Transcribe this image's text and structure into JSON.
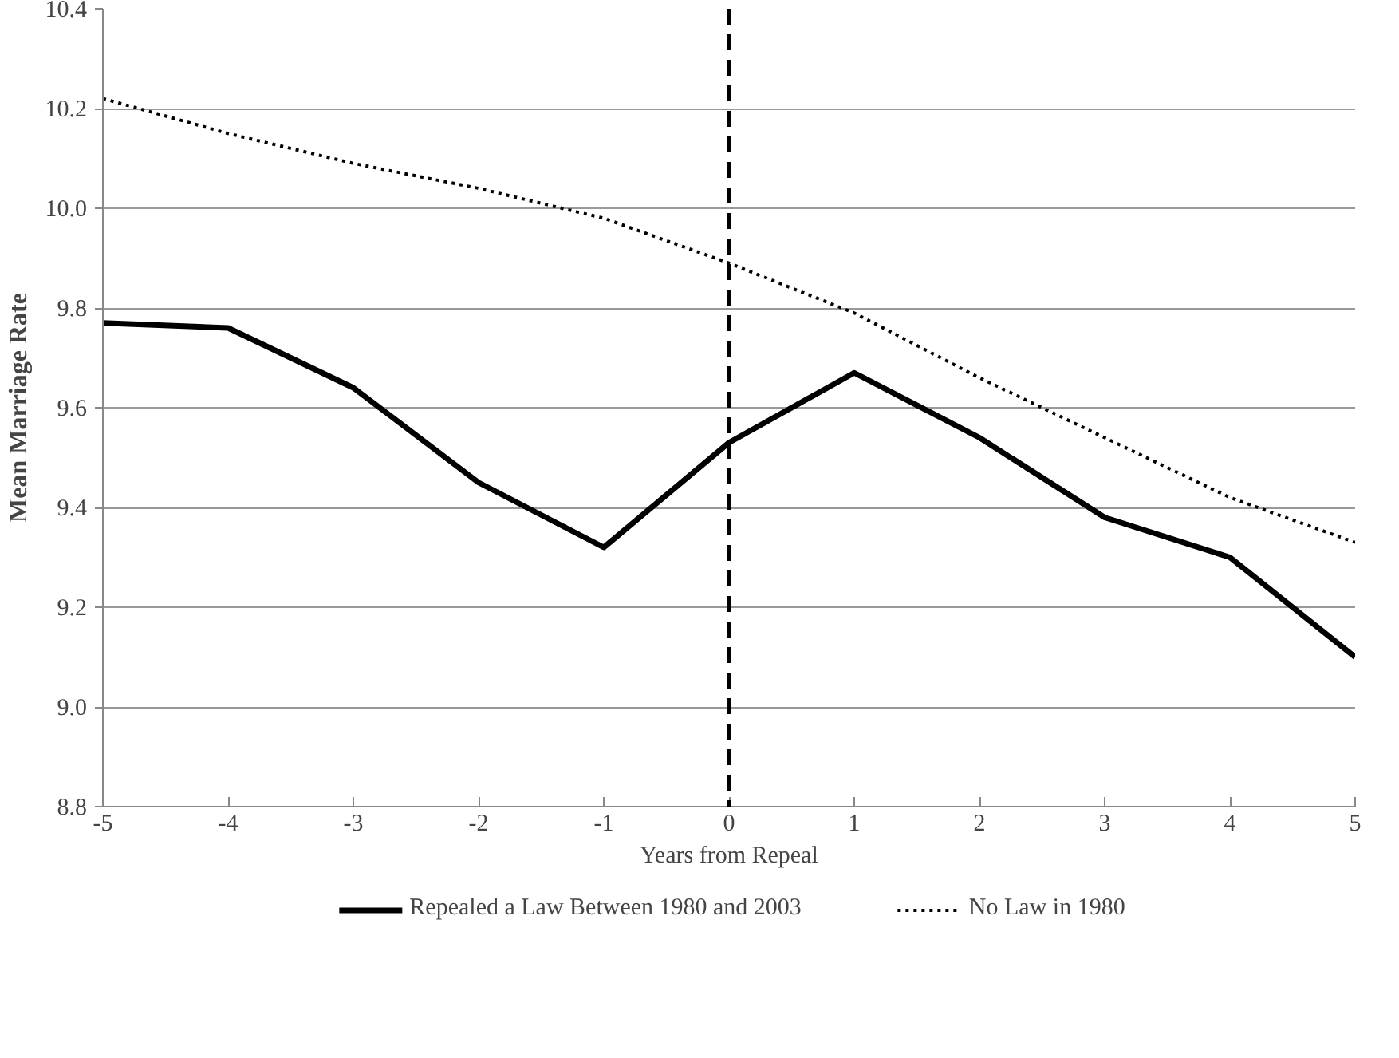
{
  "chart_data": {
    "type": "line",
    "xlabel": "Years from Repeal",
    "ylabel": "Mean Marriage Rate",
    "x": [
      -5,
      -4,
      -3,
      -2,
      -1,
      0,
      1,
      2,
      3,
      4,
      5
    ],
    "series": [
      {
        "name": "Repealed a Law Between 1980 and 2003",
        "color": "#000000",
        "line_style": "solid",
        "values": [
          9.77,
          9.76,
          9.64,
          9.45,
          9.32,
          9.53,
          9.67,
          9.54,
          9.38,
          9.3,
          9.1
        ]
      },
      {
        "name": "No Law in 1980",
        "color": "#000000",
        "line_style": "dotted",
        "values": [
          10.22,
          10.15,
          10.09,
          10.04,
          9.98,
          9.89,
          9.79,
          9.66,
          9.54,
          9.42,
          9.33
        ]
      }
    ],
    "xlim": [
      -5,
      5
    ],
    "xticks": [
      -5,
      -4,
      -3,
      -2,
      -1,
      0,
      1,
      2,
      3,
      4,
      5
    ],
    "ylim": [
      8.8,
      10.4
    ],
    "yticks": [
      {
        "value": 8.8,
        "label": "8.8"
      },
      {
        "value": 9.0,
        "label": "9.0"
      },
      {
        "value": 9.2,
        "label": "9.2"
      },
      {
        "value": 9.4,
        "label": "9.4"
      },
      {
        "value": 9.6,
        "label": "9.6"
      },
      {
        "value": 9.8,
        "label": "9.8"
      },
      {
        "value": 10.0,
        "label": "10.0"
      },
      {
        "value": 10.2,
        "label": "10.2"
      },
      {
        "value": 10.4,
        "label": "10.4"
      }
    ],
    "ref_lines": [
      {
        "axis": "x",
        "value": 0,
        "color": "#000000",
        "line_style": "dashed"
      }
    ],
    "grid": "y",
    "legend": "bottom",
    "marker": "none"
  }
}
